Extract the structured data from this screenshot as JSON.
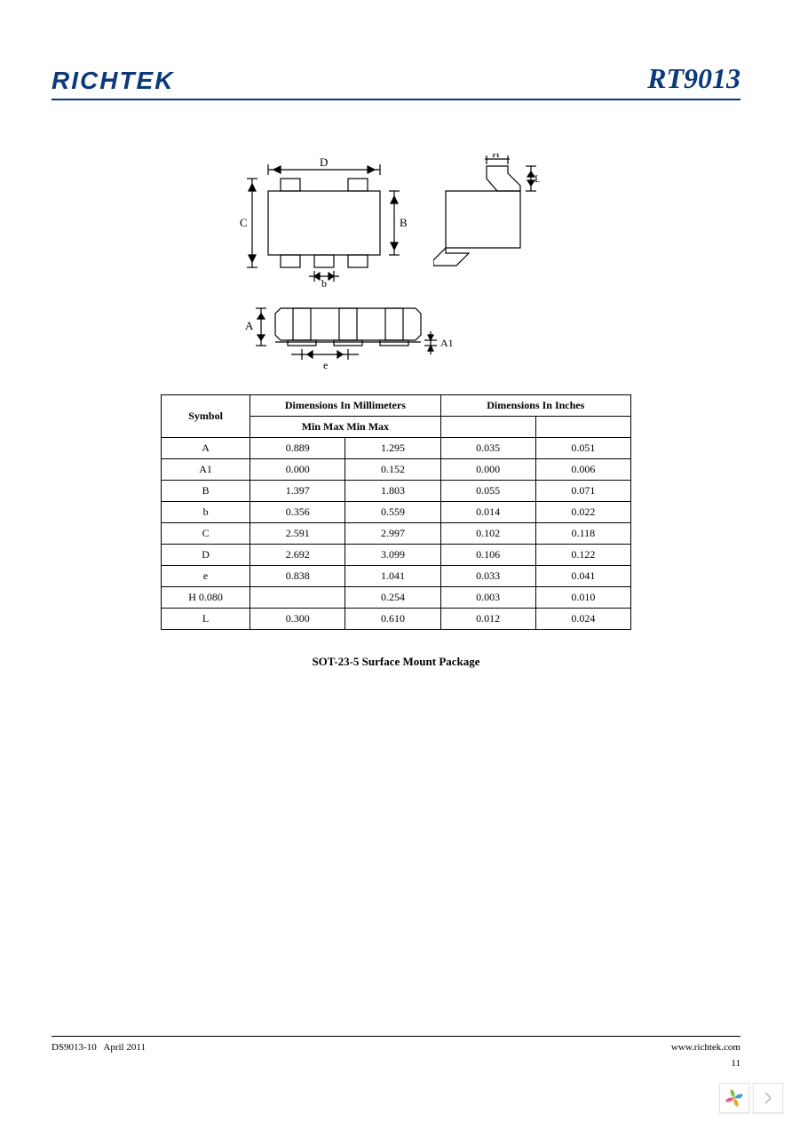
{
  "header": {
    "company": "RICHTEK",
    "part_number": "RT9013",
    "brand_color": "#0a3a7a"
  },
  "diagram": {
    "labels": {
      "D": "D",
      "B": "B",
      "C": "C",
      "b": "b",
      "H": "H",
      "L": "L",
      "A": "A",
      "A1": "A1",
      "e": "e"
    },
    "line_color": "#000000"
  },
  "table": {
    "header_symbol": "Symbol",
    "header_mm": "Dimensions In Millimeters",
    "header_in": "Dimensions In Inches",
    "subheader": "Min Max Min Max",
    "rows": [
      {
        "sym": "A",
        "mm_min": "0.889",
        "mm_max": "1.295",
        "in_min": "0.035",
        "in_max": "0.051"
      },
      {
        "sym": "A1",
        "mm_min": "0.000",
        "mm_max": "0.152",
        "in_min": "0.000",
        "in_max": "0.006"
      },
      {
        "sym": "B",
        "mm_min": "1.397",
        "mm_max": "1.803",
        "in_min": "0.055",
        "in_max": "0.071"
      },
      {
        "sym": "b",
        "mm_min": "0.356",
        "mm_max": "0.559",
        "in_min": "0.014",
        "in_max": "0.022"
      },
      {
        "sym": "C",
        "mm_min": "2.591",
        "mm_max": "2.997",
        "in_min": "0.102",
        "in_max": "0.118"
      },
      {
        "sym": "D",
        "mm_min": "2.692",
        "mm_max": "3.099",
        "in_min": "0.106",
        "in_max": "0.122"
      },
      {
        "sym": "e",
        "mm_min": "0.838",
        "mm_max": "1.041",
        "in_min": "0.033",
        "in_max": "0.041"
      },
      {
        "sym": "H 0.080",
        "mm_min": "",
        "mm_max": "0.254",
        "in_min": "0.003",
        "in_max": "0.010"
      },
      {
        "sym": "L",
        "mm_min": "0.300",
        "mm_max": "0.610",
        "in_min": "0.012",
        "in_max": "0.024"
      }
    ],
    "border_color": "#000000",
    "font_size": 12
  },
  "caption": "SOT-23-5 Surface Mount Package",
  "footer": {
    "doc_ref": "DS9013-10",
    "date": "April  2011",
    "url": "www.richtek.com",
    "page": "11"
  },
  "widget": {
    "petal_colors": [
      "#7fc241",
      "#3b9ae0",
      "#f6a31f",
      "#e85a9b"
    ],
    "arrow_color": "#bbbbbb"
  }
}
